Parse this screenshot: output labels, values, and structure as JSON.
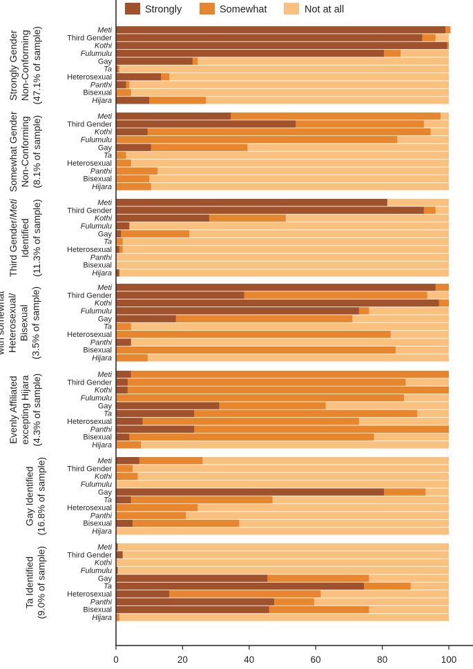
{
  "chart_data": {
    "type": "bar",
    "stacked": true,
    "orientation": "horizontal",
    "title": "",
    "xlabel": "",
    "ylabel": "",
    "xlim": [
      0,
      100
    ],
    "xticks": [
      "0",
      "20",
      "40",
      "60",
      "80",
      "100"
    ],
    "legend_position": "top",
    "series_names": [
      "Strongly",
      "Somewhat",
      "Not at all"
    ],
    "colors": {
      "strongly": "#a0522d",
      "somewhat": "#e8862d",
      "not_at_all": "#f9c07e"
    },
    "categories": [
      {
        "label": "Meti",
        "italic": true
      },
      {
        "label": "Third Gender",
        "italic": false
      },
      {
        "label": "Kothi",
        "italic": true
      },
      {
        "label": "Fulumulu",
        "italic": true
      },
      {
        "label": "Gay",
        "italic": false
      },
      {
        "label": "Ta",
        "italic": true
      },
      {
        "label": "Heterosexual",
        "italic": false
      },
      {
        "label": "Panthi",
        "italic": true
      },
      {
        "label": "Bisexual",
        "italic": false
      },
      {
        "label": "Hijara",
        "italic": true
      }
    ],
    "groups": [
      {
        "label_lines": [
          [
            {
              "t": "Strongly Gender",
              "i": false
            }
          ],
          [
            {
              "t": "Non-Conforming",
              "i": false
            }
          ],
          [
            {
              "t": "(47.1% of sample)",
              "i": false
            }
          ]
        ],
        "strongly": [
          99,
          92,
          99.5,
          80.5,
          23,
          0.5,
          13.5,
          3,
          0,
          10
        ],
        "somewhat": [
          1.5,
          4,
          0.5,
          5,
          1.5,
          0.5,
          2.5,
          1,
          4.5,
          17
        ]
      },
      {
        "label_lines": [
          [
            {
              "t": "Somewhat Gender",
              "i": false
            }
          ],
          [
            {
              "t": "Non-Conforming",
              "i": false
            }
          ],
          [
            {
              "t": "(8.1% of sample)",
              "i": false
            }
          ]
        ],
        "strongly": [
          34.5,
          54,
          9.5,
          0,
          10.5,
          0,
          0,
          0,
          0,
          0
        ],
        "somewhat": [
          63,
          38.5,
          85,
          84.5,
          29,
          3,
          4.5,
          12.5,
          10,
          10.5
        ]
      },
      {
        "label_lines": [
          [
            {
              "t": "Third Gender/",
              "i": false
            },
            {
              "t": "Meti",
              "i": true
            }
          ],
          [
            {
              "t": "Identified",
              "i": false
            }
          ],
          [
            {
              "t": "(11.3% of sample)",
              "i": false
            }
          ]
        ],
        "strongly": [
          81.5,
          92.5,
          28,
          4,
          1.5,
          0,
          1,
          0,
          0,
          1
        ],
        "somewhat": [
          0,
          3.5,
          23,
          0,
          20.5,
          2,
          1,
          0,
          0,
          0
        ]
      },
      {
        "label_lines": [
          [
            {
              "t": "with somewhat",
              "i": false
            }
          ],
          [
            {
              "t": "Heterosexual/",
              "i": false
            }
          ],
          [
            {
              "t": "Bisexual",
              "i": false
            }
          ],
          [
            {
              "t": "(3.5% of sample)",
              "i": false
            }
          ]
        ],
        "strongly": [
          96,
          38.5,
          97,
          73,
          18,
          0,
          0,
          4.5,
          0,
          0
        ],
        "somewhat": [
          4,
          55,
          3,
          3,
          53,
          4.5,
          82.5,
          0,
          84,
          9.5
        ]
      },
      {
        "label_lines": [
          [
            {
              "t": "Evenly Affiliated",
              "i": false
            }
          ],
          [
            {
              "t": "excepting Hijara",
              "i": false
            }
          ],
          [
            {
              "t": "(4.3% of sample)",
              "i": false
            }
          ]
        ],
        "strongly": [
          4.5,
          3.5,
          3.5,
          0,
          31,
          23.5,
          8,
          23.5,
          4,
          0
        ],
        "somewhat": [
          95.5,
          83.5,
          96.5,
          86.5,
          32,
          67,
          65,
          76.5,
          73.5,
          7.5
        ]
      },
      {
        "label_lines": [
          [
            {
              "t": "Gay Identified",
              "i": false
            }
          ],
          [
            {
              "t": "(16.8% of sample)",
              "i": false
            }
          ]
        ],
        "strongly": [
          7,
          0,
          0,
          0,
          80.5,
          4.5,
          0,
          0,
          5,
          0
        ],
        "somewhat": [
          19,
          5,
          6.5,
          0,
          12.5,
          42.5,
          24.5,
          21,
          32,
          0
        ]
      },
      {
        "label_lines": [
          [
            {
              "t": "Ta Identified",
              "i": false
            }
          ],
          [
            {
              "t": "(9.0% of sample)",
              "i": false
            }
          ]
        ],
        "strongly": [
          0.5,
          2,
          0,
          0.5,
          45.5,
          74.5,
          16,
          47.5,
          46,
          0
        ],
        "somewhat": [
          0,
          0,
          0,
          0,
          30.5,
          14,
          45.5,
          12,
          30,
          1
        ]
      }
    ]
  }
}
